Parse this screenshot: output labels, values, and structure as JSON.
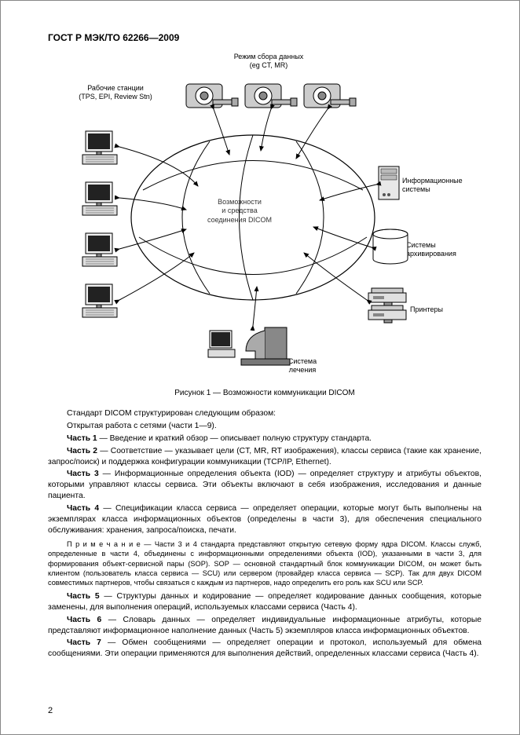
{
  "doc_id": "ГОСТ Р МЭК/ТО 62266—2009",
  "figure": {
    "labels": {
      "top": "Режим сбора данных\n(eg CT, MR)",
      "workstations": "Рабочие станции\n(TPS, EPI, Review Stn)",
      "center": "Возможности\nи средства\nсоединения DICOM",
      "info_systems": "Информационные\nсистемы",
      "archive": "Системы\nархивирования",
      "printers": "Принтеры",
      "treatment": "Система\nлечения"
    },
    "caption": "Рисунок 1 — Возможности коммуникации DICOM",
    "colors": {
      "line": "#000000",
      "fill_light": "#f0f0f0",
      "fill_mid": "#bcbcbc",
      "fill_dark": "#6a6a6a",
      "ellipse_fill": "#ffffff"
    }
  },
  "paragraphs": {
    "intro1": "Стандарт DICOM структурирован следующим образом:",
    "intro2": "Открытая работа с сетями (части 1—9).",
    "p1_b": "Часть 1",
    "p1": " — Введение и краткий обзор — описывает полную структуру стандарта.",
    "p2_b": "Часть 2",
    "p2": " — Соответствие — указывает цели (CT, MR, RT изображения), классы сервиса (такие как хранение, запрос/поиск) и поддержка конфигурации коммуникации (TCP/IP, Ethernet).",
    "p3_b": "Часть 3",
    "p3": " — Информационные определения объекта (IOD) — определяет структуру и атрибуты объектов, которыми управляют классы сервиса. Эти объекты включают в себя изображения, исследования и данные пациента.",
    "p4_b": "Часть 4",
    "p4": " — Спецификации класса сервиса — определяет операции, которые могут быть выполнены на экземплярах класса информационных объектов (определены в части 3), для обеспечения специального обслуживания: хранения, запроса/поиска, печати.",
    "note": "П р и м е ч а н и е — Части 3 и 4 стандарта представляют открытую сетевую форму ядра DICOM. Классы служб, определенные в части 4, объединены с информационными определениями объекта (IOD), указанными в части 3, для формирования объект-сервисной пары (SOP). SOP — основной стандартный блок коммуникации DICOM, он может быть клиентом (пользователь класса сервиса — SCU) или сервером (провайдер класса сервиса — SCP). Так для двух DICOM совместимых партнеров, чтобы связаться с каждым из партнеров, надо определить его роль как SCU или SCP.",
    "p5_b": "Часть 5",
    "p5": " — Структуры данных и кодирование — определяет кодирование данных сообщения, которые заменены, для выполнения операций, используемых классами сервиса (Часть 4).",
    "p6_b": "Часть 6",
    "p6": " — Словарь данных — определяет индивидуальные информационные атрибуты, которые представляют информационное наполнение данных (Часть 5) экземпляров класса информационных объектов.",
    "p7_b": "Часть 7",
    "p7": " — Обмен сообщениями — определяет операции и протокол, используемый для обмена сообщениями. Эти операции применяются для выполнения действий, определенных классами сервиса (Часть 4)."
  },
  "page_number": "2"
}
